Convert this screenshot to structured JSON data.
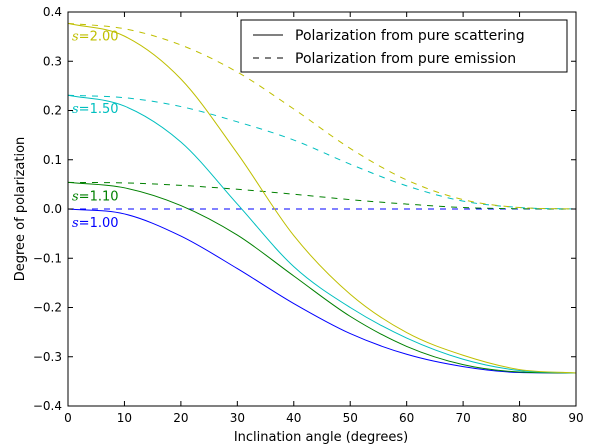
{
  "chart_data": {
    "type": "line",
    "xlabel": "Inclination angle (degrees)",
    "ylabel": "Degree of polarization",
    "xlim": [
      0,
      90
    ],
    "ylim": [
      -0.4,
      0.4
    ],
    "xticks": [
      "0",
      "10",
      "20",
      "30",
      "40",
      "50",
      "60",
      "70",
      "80",
      "90"
    ],
    "yticks": [
      "0.4",
      "0.3",
      "0.2",
      "0.1",
      "0.0",
      "−0.1",
      "−0.2",
      "−0.3",
      "−0.4"
    ],
    "grid": false,
    "legend": {
      "placement": "top-right",
      "entries": [
        {
          "label": "Polarization from pure scattering",
          "style": "solid"
        },
        {
          "label": "Polarization from pure emission",
          "style": "dashed"
        }
      ]
    },
    "x": [
      0,
      10,
      20,
      30,
      40,
      50,
      60,
      70,
      80,
      90
    ],
    "series": [
      {
        "name": "s=1.00 (scattering)",
        "label": "s=1.00",
        "color": "#0000ff",
        "style": "solid",
        "values": [
          0.0,
          -0.01,
          -0.055,
          -0.121,
          -0.192,
          -0.253,
          -0.295,
          -0.32,
          -0.332,
          -0.333
        ]
      },
      {
        "name": "s=1.00 (emission)",
        "color": "#0000ff",
        "style": "dashed",
        "values": [
          0.0,
          0.0,
          0.0,
          0.0,
          0.0,
          0.0,
          0.0,
          0.0,
          0.0,
          0.0
        ]
      },
      {
        "name": "s=1.10 (scattering)",
        "label": "s=1.10",
        "color": "#008000",
        "style": "solid",
        "values": [
          0.054,
          0.043,
          0.007,
          -0.053,
          -0.136,
          -0.218,
          -0.279,
          -0.316,
          -0.331,
          -0.333
        ]
      },
      {
        "name": "s=1.10 (emission)",
        "color": "#008000",
        "style": "dashed",
        "values": [
          0.054,
          0.053,
          0.048,
          0.04,
          0.03,
          0.019,
          0.01,
          0.003,
          0.0005,
          0.0
        ]
      },
      {
        "name": "s=1.50 (scattering)",
        "label": "s=1.50",
        "color": "#00bfbf",
        "style": "solid",
        "values": [
          0.231,
          0.209,
          0.136,
          0.01,
          -0.117,
          -0.2,
          -0.262,
          -0.305,
          -0.328,
          -0.333
        ]
      },
      {
        "name": "s=1.50 (emission)",
        "color": "#00bfbf",
        "style": "dashed",
        "values": [
          0.231,
          0.226,
          0.208,
          0.177,
          0.14,
          0.091,
          0.047,
          0.016,
          0.003,
          0.0
        ]
      },
      {
        "name": "s=2.00 (scattering)",
        "label": "s=2.00",
        "color": "#bfbf00",
        "style": "solid",
        "values": [
          0.377,
          0.351,
          0.264,
          0.113,
          -0.054,
          -0.173,
          -0.251,
          -0.297,
          -0.326,
          -0.333
        ]
      },
      {
        "name": "s=2.00 (emission)",
        "color": "#bfbf00",
        "style": "dashed",
        "values": [
          0.377,
          0.366,
          0.333,
          0.278,
          0.203,
          0.123,
          0.059,
          0.019,
          0.003,
          0.0
        ]
      }
    ]
  }
}
